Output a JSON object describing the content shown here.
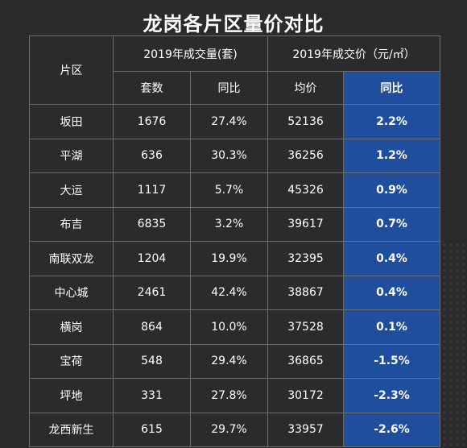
{
  "title": "龙岗各片区量价对比",
  "chart_data": {
    "type": "table",
    "header": {
      "zone": "片区",
      "volume_group": "2019年成交量(套)",
      "price_group": "2019年成交价（元/㎡）",
      "sub": [
        "套数",
        "同比",
        "均价",
        "同比"
      ]
    },
    "rows": [
      {
        "zone": "坂田",
        "units": "1676",
        "units_yoy": "27.4%",
        "avg_price": "52136",
        "price_yoy": "2.2%"
      },
      {
        "zone": "平湖",
        "units": "636",
        "units_yoy": "30.3%",
        "avg_price": "36256",
        "price_yoy": "1.2%"
      },
      {
        "zone": "大运",
        "units": "1117",
        "units_yoy": "5.7%",
        "avg_price": "45326",
        "price_yoy": "0.9%"
      },
      {
        "zone": "布吉",
        "units": "6835",
        "units_yoy": "3.2%",
        "avg_price": "39617",
        "price_yoy": "0.7%"
      },
      {
        "zone": "南联双龙",
        "units": "1204",
        "units_yoy": "19.9%",
        "avg_price": "32395",
        "price_yoy": "0.4%"
      },
      {
        "zone": "中心城",
        "units": "2461",
        "units_yoy": "42.4%",
        "avg_price": "38867",
        "price_yoy": "0.4%"
      },
      {
        "zone": "横岗",
        "units": "864",
        "units_yoy": "10.0%",
        "avg_price": "37528",
        "price_yoy": "0.1%"
      },
      {
        "zone": "宝荷",
        "units": "548",
        "units_yoy": "29.4%",
        "avg_price": "36865",
        "price_yoy": "-1.5%"
      },
      {
        "zone": "坪地",
        "units": "331",
        "units_yoy": "27.8%",
        "avg_price": "30172",
        "price_yoy": "-2.3%"
      },
      {
        "zone": "龙西新生",
        "units": "615",
        "units_yoy": "29.7%",
        "avg_price": "33957",
        "price_yoy": "-2.6%"
      }
    ],
    "highlight_color": "#1f4e9c",
    "background_color": "#2b2b2d"
  }
}
